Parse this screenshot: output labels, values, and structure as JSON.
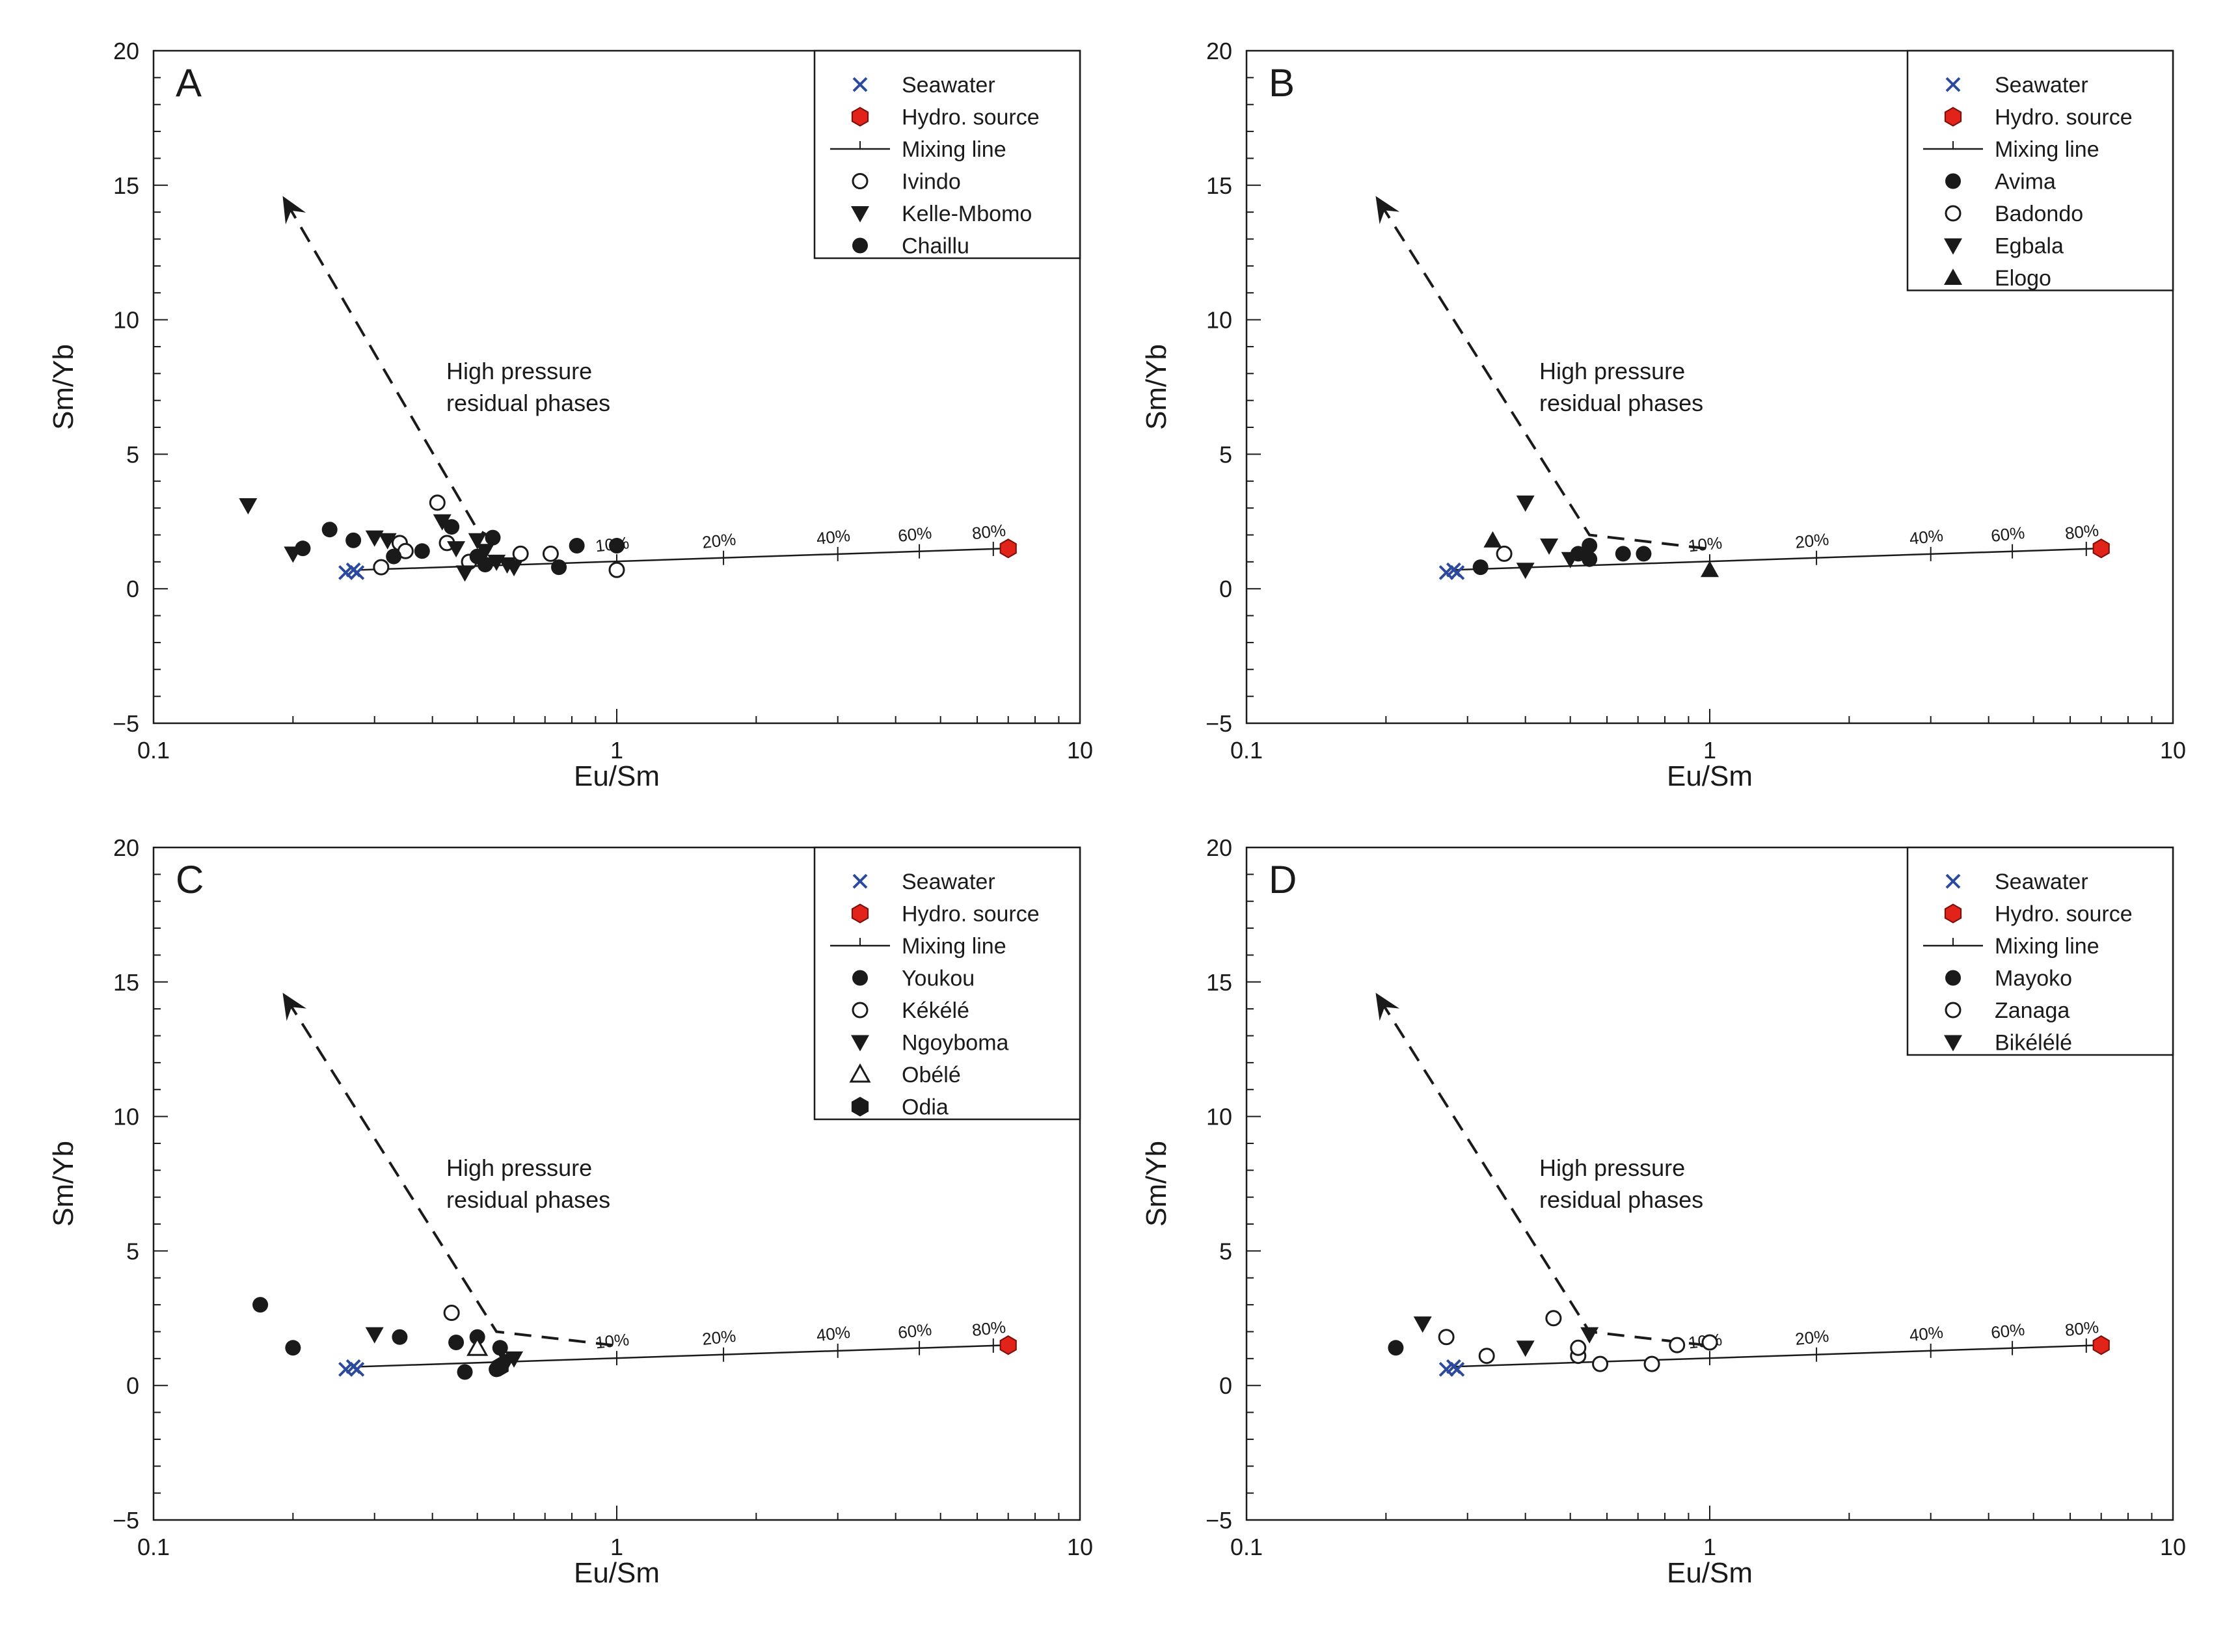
{
  "figure": {
    "xlabel": "Eu/Sm",
    "ylabel": "Sm/Yb",
    "x_ticks": [
      "0.1",
      "1",
      "10"
    ],
    "y_ticks": [
      "20",
      "15",
      "10",
      "5",
      "0",
      "−5"
    ],
    "annotation": [
      "High pressure",
      "residual phases"
    ],
    "colors": {
      "seawater": "#2b4a9e",
      "hydro_source": "#e2231a",
      "ink": "#1a1a1a"
    }
  },
  "chart_data": [
    {
      "panel": "A",
      "type": "scatter",
      "xscale": "log",
      "xlim": [
        0.1,
        10
      ],
      "ylim": [
        -5,
        20
      ],
      "legend": [
        "Seawater",
        "Hydro. source",
        "Mixing line",
        "Ivindo",
        "Kelle-Mbomo",
        "Chaillu"
      ],
      "legend_placement": "top-right",
      "mixing_line": {
        "from": [
          0.28,
          0.7
        ],
        "to": [
          7.0,
          1.5
        ],
        "ticks": [
          {
            "x": 1.0,
            "label": "10%"
          },
          {
            "x": 1.7,
            "label": "20%"
          },
          {
            "x": 3.0,
            "label": "40%"
          },
          {
            "x": 4.5,
            "label": "60%"
          },
          {
            "x": 6.5,
            "label": "80%"
          }
        ]
      },
      "trend": [
        [
          0.55,
          1.8
        ],
        [
          0.5,
          2.2
        ],
        [
          0.19,
          14.6
        ]
      ],
      "series": [
        {
          "name": "Seawater",
          "marker": "x",
          "points": [
            [
              0.26,
              0.6
            ],
            [
              0.27,
              0.7
            ],
            [
              0.275,
              0.6
            ]
          ]
        },
        {
          "name": "Hydro. source",
          "marker": "red-hexagon",
          "points": [
            [
              7.0,
              1.5
            ]
          ]
        },
        {
          "name": "Ivindo",
          "marker": "circle-open",
          "points": [
            [
              0.31,
              0.8
            ],
            [
              0.34,
              1.7
            ],
            [
              0.35,
              1.4
            ],
            [
              0.41,
              3.2
            ],
            [
              0.43,
              1.7
            ],
            [
              0.48,
              1.0
            ],
            [
              0.62,
              1.3
            ],
            [
              0.72,
              1.3
            ],
            [
              1.0,
              0.7
            ]
          ]
        },
        {
          "name": "Kelle-Mbomo",
          "marker": "triangle-down",
          "points": [
            [
              0.16,
              3.1
            ],
            [
              0.2,
              1.3
            ],
            [
              0.3,
              1.9
            ],
            [
              0.32,
              1.8
            ],
            [
              0.42,
              2.5
            ],
            [
              0.45,
              1.5
            ],
            [
              0.47,
              0.6
            ],
            [
              0.5,
              1.8
            ],
            [
              0.52,
              1.4
            ],
            [
              0.55,
              1.0
            ],
            [
              0.58,
              0.9
            ],
            [
              0.6,
              0.8
            ]
          ]
        },
        {
          "name": "Chaillu",
          "marker": "circle-filled",
          "points": [
            [
              0.21,
              1.5
            ],
            [
              0.24,
              2.2
            ],
            [
              0.27,
              1.8
            ],
            [
              0.33,
              1.2
            ],
            [
              0.38,
              1.4
            ],
            [
              0.44,
              2.3
            ],
            [
              0.5,
              1.2
            ],
            [
              0.52,
              0.9
            ],
            [
              0.54,
              1.9
            ],
            [
              0.75,
              0.8
            ],
            [
              0.82,
              1.6
            ],
            [
              1.0,
              1.6
            ]
          ]
        }
      ]
    },
    {
      "panel": "B",
      "type": "scatter",
      "xscale": "log",
      "xlim": [
        0.1,
        10
      ],
      "ylim": [
        -5,
        20
      ],
      "legend": [
        "Seawater",
        "Hydro. source",
        "Mixing line",
        "Avima",
        "Badondo",
        "Egbala",
        "Elogo"
      ],
      "legend_placement": "top-right",
      "mixing_line": {
        "from": [
          0.28,
          0.7
        ],
        "to": [
          7.0,
          1.5
        ],
        "ticks": [
          {
            "x": 1.0,
            "label": "10%"
          },
          {
            "x": 1.7,
            "label": "20%"
          },
          {
            "x": 3.0,
            "label": "40%"
          },
          {
            "x": 4.5,
            "label": "60%"
          },
          {
            "x": 6.5,
            "label": "80%"
          }
        ]
      },
      "trend": [
        [
          0.98,
          1.5
        ],
        [
          0.55,
          2.0
        ],
        [
          0.19,
          14.6
        ]
      ],
      "series": [
        {
          "name": "Seawater",
          "marker": "x",
          "points": [
            [
              0.27,
              0.6
            ],
            [
              0.28,
              0.7
            ],
            [
              0.285,
              0.6
            ]
          ]
        },
        {
          "name": "Hydro. source",
          "marker": "red-hexagon",
          "points": [
            [
              7.0,
              1.5
            ]
          ]
        },
        {
          "name": "Avima",
          "marker": "circle-filled",
          "points": [
            [
              0.32,
              0.8
            ],
            [
              0.52,
              1.3
            ],
            [
              0.55,
              1.1
            ],
            [
              0.55,
              1.6
            ],
            [
              0.65,
              1.3
            ],
            [
              0.72,
              1.3
            ]
          ]
        },
        {
          "name": "Badondo",
          "marker": "circle-open",
          "points": [
            [
              0.36,
              1.3
            ]
          ]
        },
        {
          "name": "Egbala",
          "marker": "triangle-down",
          "points": [
            [
              0.4,
              3.2
            ],
            [
              0.4,
              0.7
            ],
            [
              0.45,
              1.6
            ],
            [
              0.5,
              1.1
            ]
          ]
        },
        {
          "name": "Elogo",
          "marker": "triangle-up",
          "points": [
            [
              0.34,
              1.8
            ],
            [
              1.0,
              0.7
            ]
          ]
        }
      ]
    },
    {
      "panel": "C",
      "type": "scatter",
      "xscale": "log",
      "xlim": [
        0.1,
        10
      ],
      "ylim": [
        -5,
        20
      ],
      "legend": [
        "Seawater",
        "Hydro. source",
        "Mixing line",
        "Youkou",
        "Kékélé",
        "Ngoyboma",
        "Obélé",
        "Odia"
      ],
      "legend_placement": "top-right",
      "mixing_line": {
        "from": [
          0.28,
          0.7
        ],
        "to": [
          7.0,
          1.5
        ],
        "ticks": [
          {
            "x": 1.0,
            "label": "10%"
          },
          {
            "x": 1.7,
            "label": "20%"
          },
          {
            "x": 3.0,
            "label": "40%"
          },
          {
            "x": 4.5,
            "label": "60%"
          },
          {
            "x": 6.5,
            "label": "80%"
          }
        ]
      },
      "trend": [
        [
          0.98,
          1.5
        ],
        [
          0.55,
          2.0
        ],
        [
          0.19,
          14.6
        ]
      ],
      "series": [
        {
          "name": "Seawater",
          "marker": "x",
          "points": [
            [
              0.26,
              0.6
            ],
            [
              0.27,
              0.7
            ],
            [
              0.275,
              0.6
            ]
          ]
        },
        {
          "name": "Hydro. source",
          "marker": "red-hexagon",
          "points": [
            [
              7.0,
              1.5
            ]
          ]
        },
        {
          "name": "Youkou",
          "marker": "circle-filled",
          "points": [
            [
              0.17,
              3.0
            ],
            [
              0.2,
              1.4
            ],
            [
              0.34,
              1.8
            ],
            [
              0.45,
              1.6
            ],
            [
              0.47,
              0.5
            ],
            [
              0.5,
              1.8
            ],
            [
              0.55,
              0.6
            ],
            [
              0.56,
              1.4
            ]
          ]
        },
        {
          "name": "Kékélé",
          "marker": "circle-open",
          "points": [
            [
              0.44,
              2.7
            ]
          ]
        },
        {
          "name": "Ngoyboma",
          "marker": "triangle-down",
          "points": [
            [
              0.3,
              1.9
            ],
            [
              0.58,
              0.9
            ],
            [
              0.6,
              1.0
            ]
          ]
        },
        {
          "name": "Obélé",
          "marker": "triangle-up-open",
          "points": [
            [
              0.5,
              1.4
            ]
          ]
        },
        {
          "name": "Odia",
          "marker": "hexagon-filled",
          "points": [
            [
              0.56,
              0.7
            ]
          ]
        }
      ]
    },
    {
      "panel": "D",
      "type": "scatter",
      "xscale": "log",
      "xlim": [
        0.1,
        10
      ],
      "ylim": [
        -5,
        20
      ],
      "legend": [
        "Seawater",
        "Hydro. source",
        "Mixing line",
        "Mayoko",
        "Zanaga",
        "Bikélélé"
      ],
      "legend_placement": "top-right",
      "mixing_line": {
        "from": [
          0.28,
          0.7
        ],
        "to": [
          7.0,
          1.5
        ],
        "ticks": [
          {
            "x": 1.0,
            "label": "10%"
          },
          {
            "x": 1.7,
            "label": "20%"
          },
          {
            "x": 3.0,
            "label": "40%"
          },
          {
            "x": 4.5,
            "label": "60%"
          },
          {
            "x": 6.5,
            "label": "80%"
          }
        ]
      },
      "trend": [
        [
          0.98,
          1.5
        ],
        [
          0.55,
          2.0
        ],
        [
          0.19,
          14.6
        ]
      ],
      "series": [
        {
          "name": "Seawater",
          "marker": "x",
          "points": [
            [
              0.27,
              0.6
            ],
            [
              0.28,
              0.7
            ],
            [
              0.285,
              0.6
            ]
          ]
        },
        {
          "name": "Hydro. source",
          "marker": "red-hexagon",
          "points": [
            [
              7.0,
              1.5
            ]
          ]
        },
        {
          "name": "Mayoko",
          "marker": "circle-filled",
          "points": [
            [
              0.21,
              1.4
            ]
          ]
        },
        {
          "name": "Zanaga",
          "marker": "circle-open",
          "points": [
            [
              0.27,
              1.8
            ],
            [
              0.33,
              1.1
            ],
            [
              0.46,
              2.5
            ],
            [
              0.52,
              1.1
            ],
            [
              0.52,
              1.4
            ],
            [
              0.58,
              0.8
            ],
            [
              0.75,
              0.8
            ],
            [
              0.85,
              1.5
            ],
            [
              1.0,
              1.6
            ]
          ]
        },
        {
          "name": "Bikélélé",
          "marker": "triangle-down",
          "points": [
            [
              0.24,
              2.3
            ],
            [
              0.4,
              1.4
            ],
            [
              0.55,
              1.9
            ]
          ]
        }
      ]
    }
  ]
}
